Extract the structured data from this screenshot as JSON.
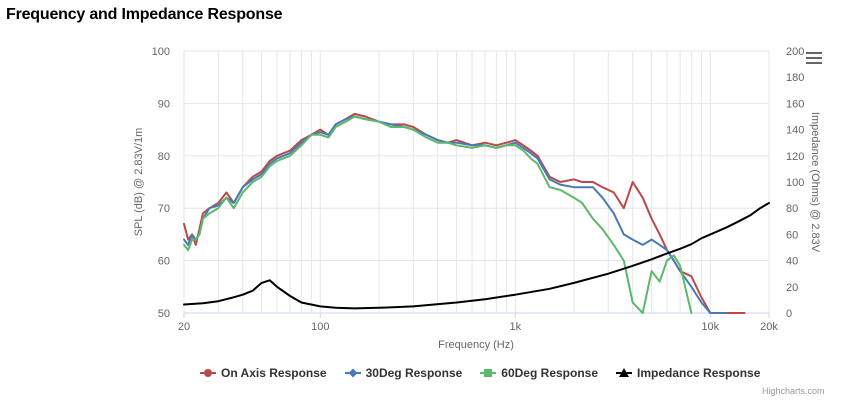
{
  "page": {
    "title": "Frequency and Impedance Response",
    "credits": "Highcharts.com"
  },
  "menu": {
    "icon": "hamburger-menu-icon"
  },
  "colors": {
    "on_axis": "#b94a48",
    "deg30": "#4a7ab5",
    "deg60": "#5cb86c",
    "impedance": "#000000",
    "grid": "#e6e6e6"
  },
  "legend": {
    "position": "bottom-center",
    "items": [
      {
        "label": "On Axis Response",
        "marker": "circle"
      },
      {
        "label": "30Deg Response",
        "marker": "diamond"
      },
      {
        "label": "60Deg Response",
        "marker": "square"
      },
      {
        "label": "Impedance Response",
        "marker": "triangle"
      }
    ]
  },
  "chart_data": {
    "type": "line",
    "title": "Frequency and Impedance Response",
    "xlabel": "Frequency (Hz)",
    "x_scale": "log",
    "xlim": [
      20,
      20000
    ],
    "x_ticks": [
      20,
      100,
      1000,
      10000,
      20000
    ],
    "x_tick_labels": [
      "20",
      "100",
      "1k",
      "10k",
      "20k"
    ],
    "y_left": {
      "label": "SPL (dB) @ 2.83V/1m",
      "lim": [
        50,
        100
      ],
      "ticks": [
        50,
        60,
        70,
        80,
        90,
        100
      ]
    },
    "y_right": {
      "label": "Impedance (Ohms) @ 2.83V",
      "lim": [
        0,
        200
      ],
      "ticks": [
        0,
        20,
        40,
        60,
        80,
        100,
        120,
        140,
        160,
        180,
        200
      ]
    },
    "grid": true,
    "series": [
      {
        "name": "On Axis Response",
        "axis": "left",
        "x": [
          20,
          21,
          22,
          23,
          24,
          25,
          27,
          30,
          33,
          36,
          40,
          45,
          50,
          55,
          60,
          70,
          80,
          90,
          100,
          110,
          120,
          135,
          150,
          170,
          200,
          230,
          270,
          300,
          350,
          400,
          450,
          500,
          600,
          700,
          800,
          900,
          1000,
          1100,
          1200,
          1300,
          1500,
          1700,
          2000,
          2200,
          2500,
          2800,
          3200,
          3600,
          4000,
          4500,
          5000,
          5500,
          6000,
          6500,
          7000,
          8000,
          9000,
          10000,
          11000,
          12000,
          13000,
          14000,
          15000
        ],
        "y": [
          67,
          64,
          65,
          63,
          66,
          69,
          70,
          71,
          73,
          71,
          74,
          76,
          77,
          79,
          80,
          81,
          83,
          84,
          85,
          84,
          86,
          87,
          88,
          87.5,
          86.5,
          86,
          86,
          85.5,
          84,
          83,
          82.5,
          83,
          82,
          82.5,
          82,
          82.5,
          83,
          82,
          81,
          80,
          76,
          75,
          75.5,
          75,
          75,
          74,
          73,
          70,
          75,
          72,
          68,
          65,
          62,
          60,
          58,
          57,
          53,
          50,
          50,
          50,
          50,
          50,
          50
        ]
      },
      {
        "name": "30Deg Response",
        "axis": "left",
        "x": [
          20,
          21,
          22,
          23,
          24,
          25,
          27,
          30,
          33,
          36,
          40,
          45,
          50,
          55,
          60,
          70,
          80,
          90,
          100,
          110,
          120,
          135,
          150,
          170,
          200,
          230,
          270,
          300,
          350,
          400,
          450,
          500,
          600,
          700,
          800,
          900,
          1000,
          1100,
          1200,
          1300,
          1500,
          1700,
          2000,
          2200,
          2500,
          2800,
          3200,
          3600,
          4000,
          4500,
          5000,
          5500,
          6000,
          6500,
          7000,
          8000,
          9000,
          10000,
          11000,
          12000
        ],
        "y": [
          64,
          63,
          65,
          64,
          65,
          68,
          70,
          70.5,
          72,
          71,
          74,
          75.5,
          76.5,
          78.5,
          79.5,
          80.5,
          82.5,
          84,
          84.5,
          84,
          86,
          87,
          87.5,
          87,
          86.5,
          86,
          85.5,
          85,
          84,
          83,
          82.5,
          82.5,
          82,
          82,
          81.5,
          82,
          82.5,
          81.5,
          80.5,
          79.5,
          75.5,
          74.5,
          74,
          74,
          74,
          72,
          69,
          65,
          64,
          63,
          64,
          63,
          62,
          60,
          58,
          55,
          52,
          50,
          50,
          50
        ]
      },
      {
        "name": "60Deg Response",
        "axis": "left",
        "x": [
          20,
          21,
          22,
          23,
          24,
          25,
          27,
          30,
          33,
          36,
          40,
          45,
          50,
          55,
          60,
          70,
          80,
          90,
          100,
          110,
          120,
          135,
          150,
          170,
          200,
          230,
          270,
          300,
          350,
          400,
          450,
          500,
          600,
          700,
          800,
          900,
          1000,
          1100,
          1200,
          1300,
          1500,
          1700,
          2000,
          2200,
          2500,
          2800,
          3200,
          3600,
          4000,
          4500,
          5000,
          5500,
          6000,
          6500,
          7000,
          8000
        ],
        "y": [
          63,
          62,
          64,
          64,
          65,
          68,
          69,
          70,
          72,
          70,
          73,
          75,
          76,
          78,
          79,
          80,
          82,
          84,
          84,
          83.5,
          85.5,
          86.5,
          87.5,
          87,
          86.5,
          85.5,
          85.5,
          85,
          83.5,
          82.5,
          82.5,
          82,
          81.5,
          82,
          81.5,
          82,
          82,
          81,
          79.5,
          78.5,
          74,
          73.5,
          72,
          71,
          68,
          66,
          63,
          60,
          52,
          50,
          58,
          56,
          60,
          61,
          59,
          50
        ]
      },
      {
        "name": "Impedance Response",
        "axis": "right",
        "x": [
          20,
          25,
          30,
          35,
          40,
          45,
          50,
          55,
          60,
          70,
          80,
          100,
          120,
          150,
          200,
          300,
          500,
          700,
          1000,
          1500,
          2000,
          3000,
          4000,
          5000,
          6000,
          7000,
          8000,
          9000,
          10000,
          12000,
          14000,
          16000,
          18000,
          20000
        ],
        "y": [
          6.5,
          7.5,
          9,
          11.5,
          14,
          17,
          23,
          25,
          20,
          13,
          8,
          5,
          4,
          3.5,
          4,
          5,
          8,
          10.5,
          14,
          18.5,
          23,
          30,
          36,
          41,
          45.5,
          49,
          52.5,
          57,
          60,
          65,
          70,
          74.5,
          80,
          84
        ]
      }
    ]
  }
}
